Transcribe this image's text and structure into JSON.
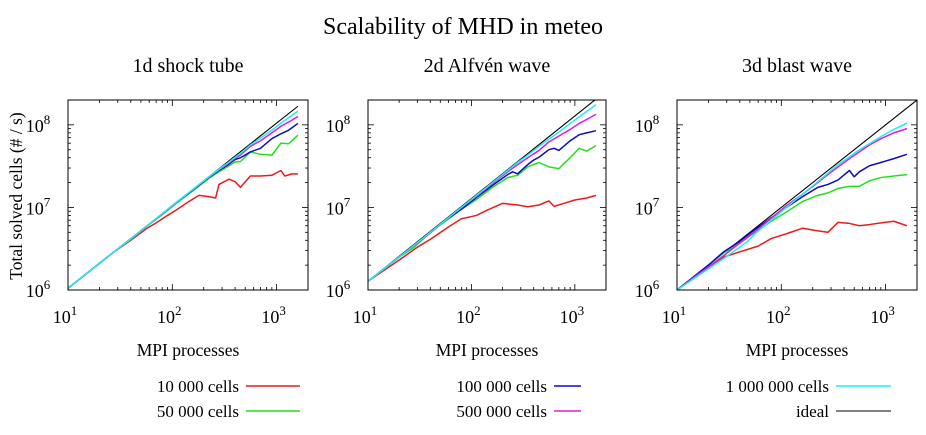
{
  "figure_title": "Scalability of MHD in meteo",
  "y_axis_label": "Total solved cells (# / s)",
  "x_axis_label": "MPI processes",
  "series_colors": {
    "10 000 cells": "#e81c1c",
    "50 000 cells": "#22e01c",
    "100 000 cells": "#0c0cc0",
    "500 000 cells": "#e01ce0",
    "1 000 000 cells": "#1cf0f0",
    "ideal": "#000000"
  },
  "chart_data": [
    {
      "type": "line",
      "title": "1d shock tube",
      "xlabel": "MPI processes",
      "ylabel": "Total solved cells (# / s)",
      "xscale": "log",
      "yscale": "log",
      "xlim": [
        10,
        2000
      ],
      "ylim": [
        1000000,
        200000000
      ],
      "x_ticks": [
        {
          "base": "10",
          "exp": "1"
        },
        {
          "base": "10",
          "exp": "2"
        },
        {
          "base": "10",
          "exp": "3"
        }
      ],
      "y_ticks": [
        {
          "base": "10",
          "exp": "6"
        },
        {
          "base": "10",
          "exp": "7"
        },
        {
          "base": "10",
          "exp": "8"
        }
      ],
      "series": [
        {
          "name": "ideal",
          "x": [
            10,
            1600
          ],
          "y": [
            1050000,
            168000000
          ]
        },
        {
          "name": "10 000 cells",
          "x": [
            10,
            14,
            20,
            28,
            40,
            56,
            70,
            90,
            112,
            140,
            180,
            224,
            260,
            280,
            350,
            400,
            450,
            560,
            700,
            900,
            1100,
            1200,
            1400,
            1600
          ],
          "y": [
            1050000,
            1470000,
            2100000,
            2940000,
            4000000,
            5500000,
            6500000,
            8000000,
            9500000,
            11500000,
            14000000,
            13500000,
            13000000,
            19000000,
            22000000,
            20500000,
            17500000,
            24000000,
            24000000,
            24500000,
            28000000,
            24000000,
            25500000,
            25500000
          ]
        },
        {
          "name": "50 000 cells",
          "x": [
            10,
            14,
            20,
            28,
            40,
            56,
            80,
            112,
            160,
            224,
            280,
            350,
            400,
            450,
            560,
            700,
            900,
            1100,
            1300,
            1600
          ],
          "y": [
            1050000,
            1470000,
            2100000,
            2940000,
            4100000,
            5800000,
            8200000,
            11500000,
            16200000,
            22500000,
            27000000,
            32000000,
            35500000,
            36000000,
            47000000,
            44000000,
            43000000,
            60000000,
            59000000,
            75000000
          ]
        },
        {
          "name": "100 000 cells",
          "x": [
            10,
            14,
            20,
            28,
            40,
            56,
            80,
            112,
            160,
            224,
            280,
            350,
            400,
            450,
            560,
            700,
            900,
            1100,
            1300,
            1600
          ],
          "y": [
            1050000,
            1470000,
            2100000,
            2940000,
            4150000,
            5850000,
            8300000,
            11700000,
            16500000,
            23000000,
            28000000,
            33500000,
            38000000,
            40000000,
            47000000,
            52000000,
            68000000,
            78000000,
            86000000,
            104000000
          ]
        },
        {
          "name": "500 000 cells",
          "x": [
            10,
            14,
            20,
            28,
            40,
            56,
            80,
            112,
            160,
            224,
            280,
            350,
            400,
            450,
            560,
            700,
            900,
            1100,
            1300,
            1600
          ],
          "y": [
            1050000,
            1470000,
            2100000,
            2940000,
            4150000,
            5850000,
            8350000,
            11800000,
            16700000,
            23300000,
            28500000,
            34500000,
            39500000,
            43000000,
            55000000,
            64000000,
            80000000,
            96000000,
            108000000,
            126000000
          ]
        },
        {
          "name": "1 000 000 cells",
          "x": [
            10,
            14,
            20,
            28,
            40,
            56,
            80,
            112,
            160,
            224,
            280,
            350,
            400,
            450,
            560,
            700,
            900,
            1100,
            1300,
            1600
          ],
          "y": [
            1050000,
            1470000,
            2100000,
            2940000,
            4150000,
            5850000,
            8400000,
            11800000,
            16800000,
            23500000,
            29000000,
            35500000,
            40500000,
            45000000,
            57000000,
            69000000,
            86000000,
            105000000,
            122000000,
            146000000
          ]
        }
      ]
    },
    {
      "type": "line",
      "title": "2d Alfvén wave",
      "xlabel": "MPI processes",
      "ylabel": "Total solved cells (# / s)",
      "xscale": "log",
      "yscale": "log",
      "xlim": [
        10,
        2000
      ],
      "ylim": [
        1000000,
        200000000
      ],
      "x_ticks": [
        {
          "base": "10",
          "exp": "1"
        },
        {
          "base": "10",
          "exp": "2"
        },
        {
          "base": "10",
          "exp": "3"
        }
      ],
      "y_ticks": [
        {
          "base": "10",
          "exp": "6"
        },
        {
          "base": "10",
          "exp": "7"
        },
        {
          "base": "10",
          "exp": "8"
        }
      ],
      "series": [
        {
          "name": "ideal",
          "x": [
            10,
            1600
          ],
          "y": [
            1280000,
            205000000
          ]
        },
        {
          "name": "10 000 cells",
          "x": [
            10,
            20,
            30,
            40,
            60,
            80,
            112,
            140,
            200,
            280,
            350,
            450,
            560,
            630,
            800,
            1000,
            1300,
            1600
          ],
          "y": [
            1280000,
            2300000,
            3300000,
            4100000,
            5800000,
            7300000,
            8000000,
            9200000,
            11200000,
            10700000,
            10200000,
            10700000,
            12000000,
            10300000,
            11300000,
            12300000,
            13000000,
            14000000
          ]
        },
        {
          "name": "50 000 cells",
          "x": [
            10,
            20,
            28,
            40,
            56,
            80,
            112,
            160,
            224,
            280,
            350,
            450,
            560,
            700,
            900,
            1100,
            1300,
            1600
          ],
          "y": [
            1280000,
            2500000,
            3300000,
            5000000,
            6800000,
            9500000,
            12500000,
            17500000,
            23000000,
            24500000,
            31000000,
            35000000,
            31000000,
            29500000,
            40000000,
            52000000,
            48000000,
            56000000
          ]
        },
        {
          "name": "100 000 cells",
          "x": [
            10,
            20,
            28,
            40,
            56,
            80,
            112,
            160,
            224,
            250,
            280,
            350,
            400,
            450,
            560,
            630,
            700,
            900,
            1100,
            1300,
            1600
          ],
          "y": [
            1280000,
            2500000,
            3500000,
            5000000,
            7000000,
            9500000,
            13200000,
            18500000,
            25000000,
            27000000,
            25500000,
            33000000,
            37500000,
            40500000,
            50000000,
            52000000,
            49000000,
            64000000,
            76000000,
            80000000,
            85000000
          ]
        },
        {
          "name": "500 000 cells",
          "x": [
            10,
            20,
            28,
            40,
            56,
            80,
            112,
            160,
            224,
            280,
            350,
            450,
            560,
            700,
            900,
            1100,
            1300,
            1600
          ],
          "y": [
            1280000,
            2500000,
            3450000,
            4900000,
            7000000,
            10000000,
            13600000,
            19500000,
            27000000,
            33000000,
            40000000,
            49000000,
            62000000,
            73000000,
            88000000,
            104000000,
            116000000,
            134000000
          ]
        },
        {
          "name": "1 000 000 cells",
          "x": [
            10,
            20,
            28,
            40,
            56,
            80,
            112,
            160,
            224,
            280,
            350,
            450,
            560,
            700,
            900,
            1100,
            1300,
            1600
          ],
          "y": [
            1280000,
            2500000,
            3500000,
            5000000,
            7000000,
            10000000,
            14000000,
            20000000,
            28000000,
            35000000,
            43000000,
            55000000,
            67000000,
            82000000,
            104000000,
            125000000,
            145000000,
            175000000
          ]
        }
      ]
    },
    {
      "type": "line",
      "title": "3d blast wave",
      "xlabel": "MPI processes",
      "ylabel": "Total solved cells (# / s)",
      "xscale": "log",
      "yscale": "log",
      "xlim": [
        10,
        2000
      ],
      "ylim": [
        1000000,
        200000000
      ],
      "x_ticks": [
        {
          "base": "10",
          "exp": "1"
        },
        {
          "base": "10",
          "exp": "2"
        },
        {
          "base": "10",
          "exp": "3"
        }
      ],
      "y_ticks": [
        {
          "base": "10",
          "exp": "6"
        },
        {
          "base": "10",
          "exp": "7"
        },
        {
          "base": "10",
          "exp": "8"
        }
      ],
      "series": [
        {
          "name": "ideal",
          "x": [
            10,
            2000
          ],
          "y": [
            1000000,
            200000000
          ]
        },
        {
          "name": "10 000 cells",
          "x": [
            10,
            16,
            20,
            28,
            40,
            60,
            80,
            112,
            160,
            224,
            280,
            350,
            450,
            560,
            700,
            900,
            1200,
            1600
          ],
          "y": [
            1000000,
            1500000,
            1900000,
            2500000,
            2900000,
            3400000,
            4200000,
            4800000,
            5600000,
            5200000,
            5000000,
            6600000,
            6400000,
            6000000,
            6200000,
            6500000,
            6800000,
            6000000
          ]
        },
        {
          "name": "50 000 cells",
          "x": [
            10,
            16,
            20,
            28,
            40,
            56,
            80,
            112,
            160,
            224,
            280,
            350,
            450,
            560,
            700,
            900,
            1200,
            1600
          ],
          "y": [
            1000000,
            1600000,
            2000000,
            2800000,
            3700000,
            5000000,
            6800000,
            8800000,
            11800000,
            14000000,
            15000000,
            17000000,
            18000000,
            18000000,
            21000000,
            23000000,
            24000000,
            25000000
          ]
        },
        {
          "name": "100 000 cells",
          "x": [
            10,
            16,
            20,
            28,
            40,
            56,
            80,
            112,
            160,
            224,
            280,
            350,
            450,
            500,
            560,
            700,
            900,
            1200,
            1600
          ],
          "y": [
            1000000,
            1600000,
            2000000,
            2900000,
            3900000,
            5400000,
            7500000,
            10000000,
            13500000,
            17500000,
            19000000,
            21500000,
            28000000,
            23500000,
            27000000,
            32000000,
            35000000,
            39000000,
            44000000
          ]
        },
        {
          "name": "500 000 cells",
          "x": [
            10,
            16,
            20,
            28,
            40,
            56,
            80,
            112,
            160,
            224,
            280,
            350,
            450,
            560,
            700,
            900,
            1200,
            1600
          ],
          "y": [
            1000000,
            1550000,
            1900000,
            2600000,
            3700000,
            5100000,
            7400000,
            10500000,
            14500000,
            20000000,
            25000000,
            31000000,
            39000000,
            47000000,
            57000000,
            68000000,
            80000000,
            90000000
          ]
        },
        {
          "name": "1 000 000 cells",
          "x": [
            10,
            16,
            20,
            28,
            40,
            48,
            56,
            80,
            112,
            160,
            224,
            280,
            350,
            450,
            560,
            700,
            900,
            1200,
            1600
          ],
          "y": [
            1000000,
            1500000,
            1800000,
            2400000,
            3300000,
            3900000,
            4800000,
            7000000,
            10000000,
            14500000,
            20500000,
            26000000,
            33000000,
            41000000,
            50000000,
            59000000,
            72000000,
            88000000,
            105000000
          ]
        }
      ]
    }
  ],
  "legends": [
    {
      "entries": [
        {
          "label": "10 000 cells",
          "series": "10 000 cells"
        },
        {
          "label": "50 000 cells",
          "series": "50 000 cells"
        }
      ]
    },
    {
      "entries": [
        {
          "label": "100 000 cells",
          "series": "100 000 cells"
        },
        {
          "label": "500 000 cells",
          "series": "500 000 cells"
        }
      ]
    },
    {
      "entries": [
        {
          "label": "1 000 000 cells",
          "series": "1 000 000 cells"
        },
        {
          "label": "ideal",
          "series": "ideal"
        }
      ]
    }
  ]
}
